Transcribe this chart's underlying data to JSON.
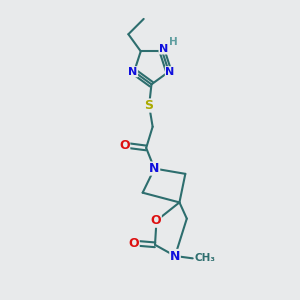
{
  "bg_color": "#e8eaeb",
  "bond_color": "#2d6e6e",
  "bond_width": 1.5,
  "atom_colors": {
    "N": "#1010dd",
    "O": "#dd1010",
    "S": "#aaaa00",
    "H_label": "#5f9ea0",
    "C": "#2d6e6e"
  }
}
